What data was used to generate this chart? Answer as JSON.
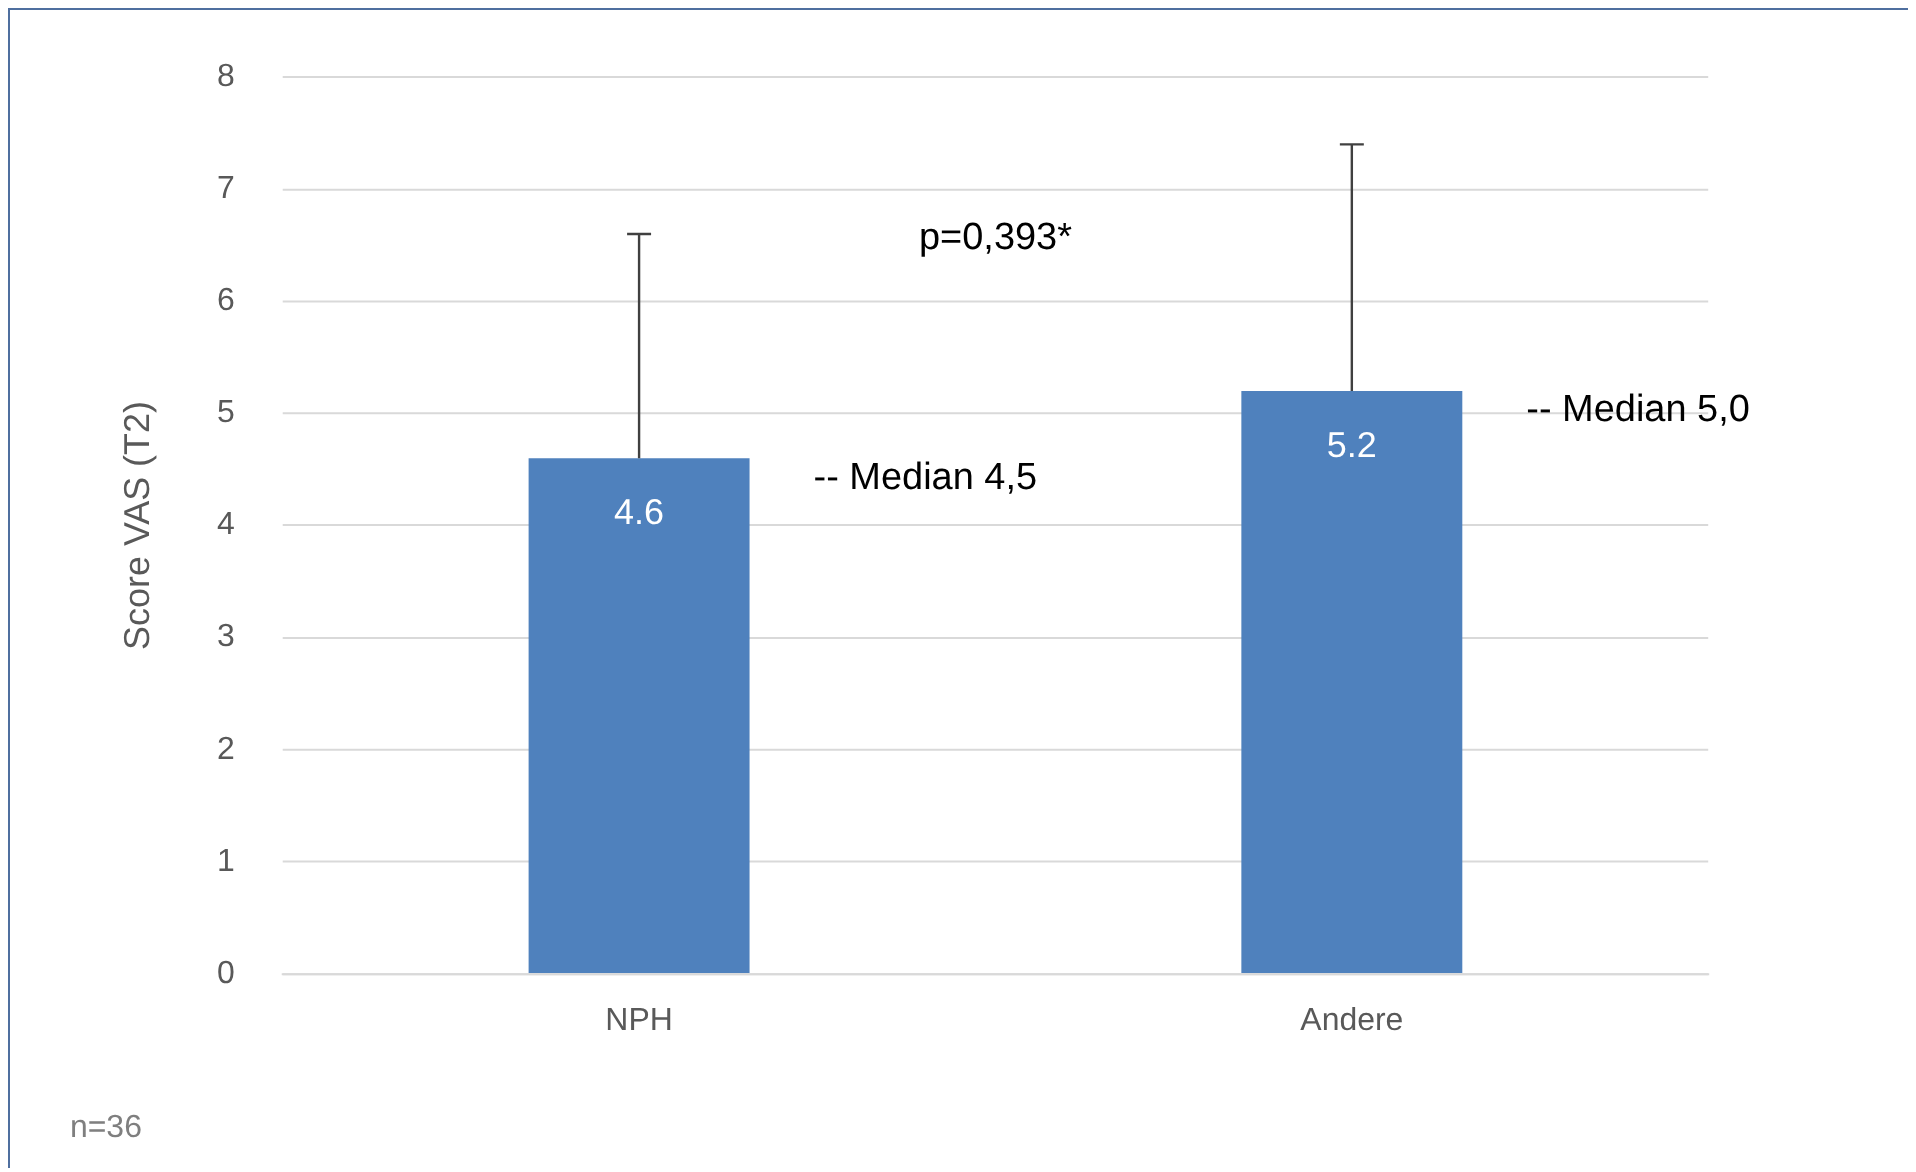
{
  "chart_data": {
    "type": "bar",
    "ylabel": "Score VAS (T2)",
    "categories": [
      "NPH",
      "Andere"
    ],
    "values": [
      4.6,
      5.2
    ],
    "color": "#4f81bd",
    "errors": [
      [
        4.6,
        6.6
      ],
      [
        5.2,
        7.4
      ]
    ],
    "ylim": [
      0,
      8
    ],
    "yticks": [
      0,
      1,
      2,
      3,
      4,
      5,
      6,
      7,
      8
    ],
    "grid": "y",
    "legend": false,
    "data_labels": true,
    "annotations": [
      "p=0,393*",
      "-- Median 4,5",
      "-- Median 5,0",
      "n=36"
    ]
  }
}
